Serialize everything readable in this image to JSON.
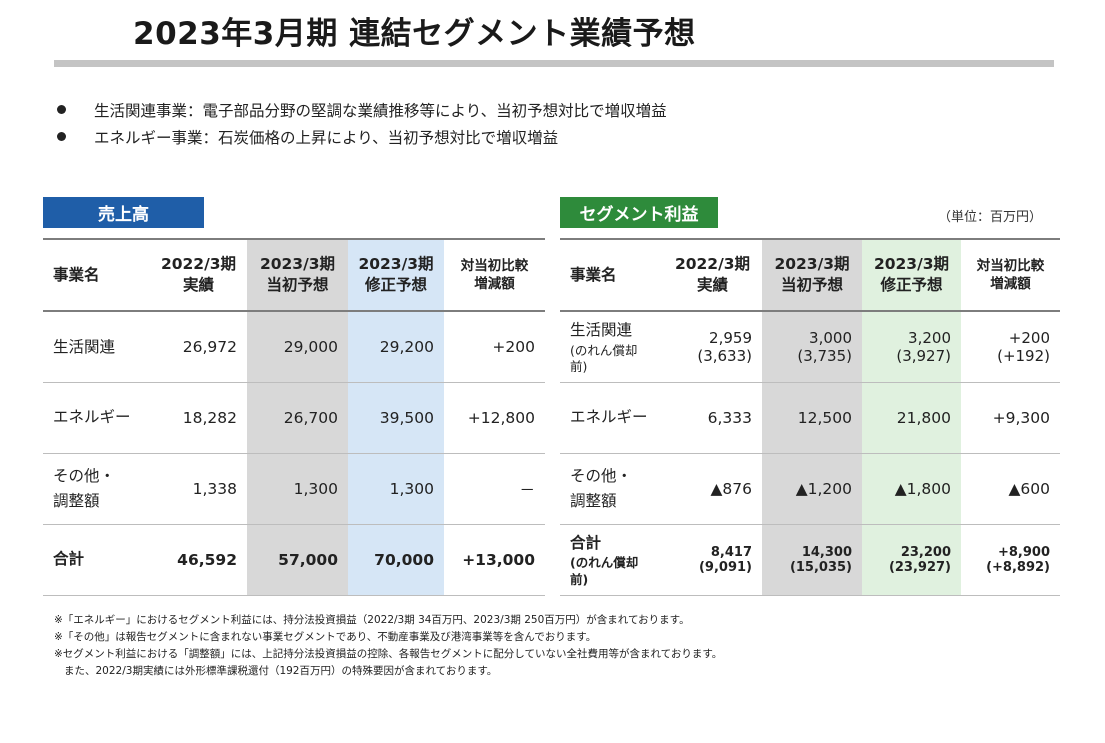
{
  "title": "2023年3月期 連結セグメント業績予想",
  "bullets": [
    "生活関連事業：電子部品分野の堅調な業績推移等により、当初予想対比で増収増益",
    "エネルギー事業：石炭価格の上昇により、当初予想対比で増収増益"
  ],
  "sales": {
    "tag": "売上高",
    "headers": {
      "name": "事業名",
      "c1_l1": "2022/3期",
      "c1_l2": "実績",
      "c2_l1": "2023/3期",
      "c2_l2": "当初予想",
      "c3_l1": "2023/3期",
      "c3_l2": "修正予想",
      "c4_l1": "対当初比較",
      "c4_l2": "増減額"
    },
    "rows": [
      {
        "name_l1": "生活関連",
        "name_l2": "",
        "actual": "26,972",
        "initial": "29,000",
        "revised": "29,200",
        "diff": "+200"
      },
      {
        "name_l1": "エネルギー",
        "name_l2": "",
        "actual": "18,282",
        "initial": "26,700",
        "revised": "39,500",
        "diff": "+12,800"
      },
      {
        "name_l1": "その他・",
        "name_l2": "調整額",
        "actual": "1,338",
        "initial": "1,300",
        "revised": "1,300",
        "diff": "－"
      },
      {
        "name_l1": "合計",
        "name_l2": "",
        "actual": "46,592",
        "initial": "57,000",
        "revised": "70,000",
        "diff": "+13,000"
      }
    ]
  },
  "profit": {
    "tag": "セグメント利益",
    "unit": "（単位：百万円）",
    "headers": {
      "name": "事業名",
      "c1_l1": "2022/3期",
      "c1_l2": "実績",
      "c2_l1": "2023/3期",
      "c2_l2": "当初予想",
      "c3_l1": "2023/3期",
      "c3_l2": "修正予想",
      "c4_l1": "対当初比較",
      "c4_l2": "増減額"
    },
    "rows": [
      {
        "name_l1": "生活関連",
        "name_sub": "(のれん償却前)",
        "actual": "2,959",
        "actual_sub": "(3,633)",
        "initial": "3,000",
        "initial_sub": "(3,735)",
        "revised": "3,200",
        "revised_sub": "(3,927)",
        "diff": "+200",
        "diff_sub": "(+192)"
      },
      {
        "name_l1": "エネルギー",
        "name_sub": "",
        "actual": "6,333",
        "initial": "12,500",
        "revised": "21,800",
        "diff": "+9,300"
      },
      {
        "name_l1": "その他・",
        "name_l2": "調整額",
        "actual": "▲876",
        "initial": "▲1,200",
        "revised": "▲1,800",
        "diff": "▲600"
      },
      {
        "name_l1": "合計",
        "name_sub": "(のれん償却前)",
        "actual": "8,417",
        "actual_sub": "(9,091)",
        "initial": "14,300",
        "initial_sub": "(15,035)",
        "revised": "23,200",
        "revised_sub": "(23,927)",
        "diff": "+8,900",
        "diff_sub": "(+8,892)"
      }
    ]
  },
  "notes": [
    "※「エネルギー」におけるセグメント利益には、持分法投資損益（2022/3期 34百万円、2023/3期 250百万円）が含まれております。",
    "※「その他」は報告セグメントに含まれない事業セグメントであり、不動産事業及び港湾事業等を含んでおります。",
    "※セグメント利益における「調整額」には、上記持分法投資損益の控除、各報告セグメントに配分していない全社費用等が含まれております。",
    "また、2022/3期実績には外形標準課税還付（192百万円）の特殊要因が含まれております。"
  ],
  "colors": {
    "sales_tag": "#1f5ea8",
    "profit_tag": "#2e8b3b",
    "initial_column": "#d8d8d8",
    "sales_revised_column": "#d6e6f6",
    "profit_revised_column": "#e0f1df"
  }
}
